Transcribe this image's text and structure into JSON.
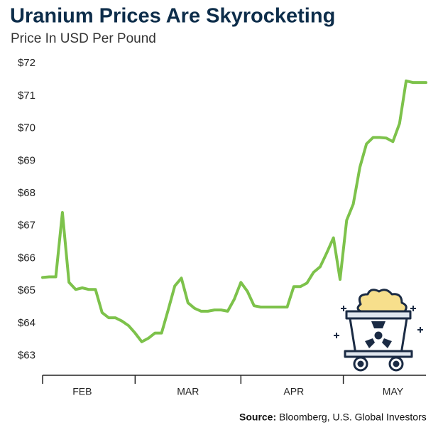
{
  "chart_data": {
    "type": "line",
    "title": "Uranium Prices Are Skyrocketing",
    "subtitle": "Price In USD Per Pound",
    "categories": [
      null,
      null,
      null,
      null,
      null,
      null,
      "FEB",
      null,
      null,
      null,
      null,
      null,
      null,
      null,
      null,
      null,
      null,
      null,
      null,
      null,
      null,
      null,
      "MAR",
      null,
      null,
      null,
      null,
      null,
      null,
      null,
      null,
      null,
      null,
      null,
      null,
      null,
      null,
      null,
      "APR",
      null,
      null,
      null,
      null,
      null,
      null,
      null,
      null,
      null,
      null,
      null,
      null,
      null,
      null,
      "MAY",
      null,
      null,
      null,
      null,
      null
    ],
    "series": [
      {
        "name": "Uranium price",
        "color": "#7dc24b",
        "values": [
          65.41,
          65.43,
          65.43,
          67.41,
          65.26,
          65.04,
          65.09,
          65.04,
          65.04,
          64.33,
          64.17,
          64.17,
          64.07,
          63.93,
          63.7,
          63.43,
          63.54,
          63.7,
          63.7,
          64.41,
          65.15,
          65.39,
          64.63,
          64.46,
          64.37,
          64.37,
          64.41,
          64.41,
          64.37,
          64.74,
          65.26,
          64.98,
          64.54,
          64.5,
          64.5,
          64.5,
          64.5,
          64.5,
          65.13,
          65.13,
          65.24,
          65.57,
          65.74,
          66.17,
          66.63,
          65.35,
          67.17,
          67.67,
          68.8,
          69.52,
          69.72,
          69.72,
          69.7,
          69.59,
          70.15,
          71.46,
          71.41,
          71.41,
          71.41
        ]
      }
    ],
    "ylim": [
      62.4,
      72.2
    ],
    "yticks": [
      {
        "value": 63,
        "label": "$63"
      },
      {
        "value": 64,
        "label": "$64"
      },
      {
        "value": 65,
        "label": "$65"
      },
      {
        "value": 66,
        "label": "$66"
      },
      {
        "value": 67,
        "label": "$67"
      },
      {
        "value": 68,
        "label": "$68"
      },
      {
        "value": 69,
        "label": "$69"
      },
      {
        "value": 70,
        "label": "$70"
      },
      {
        "value": 71,
        "label": "$71"
      },
      {
        "value": 72,
        "label": "$72"
      }
    ],
    "grid": false,
    "source_label": "Source:",
    "source": "Bloomberg, U.S. Global Investors"
  }
}
